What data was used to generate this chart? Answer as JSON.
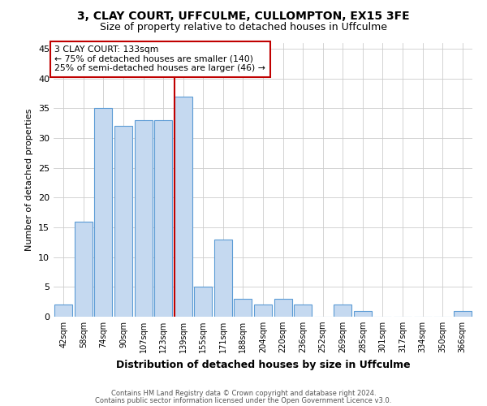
{
  "title1": "3, CLAY COURT, UFFCULME, CULLOMPTON, EX15 3FE",
  "title2": "Size of property relative to detached houses in Uffculme",
  "xlabel": "Distribution of detached houses by size in Uffculme",
  "ylabel": "Number of detached properties",
  "categories": [
    "42sqm",
    "58sqm",
    "74sqm",
    "90sqm",
    "107sqm",
    "123sqm",
    "139sqm",
    "155sqm",
    "171sqm",
    "188sqm",
    "204sqm",
    "220sqm",
    "236sqm",
    "252sqm",
    "269sqm",
    "285sqm",
    "301sqm",
    "317sqm",
    "334sqm",
    "350sqm",
    "366sqm"
  ],
  "values": [
    2,
    16,
    35,
    32,
    33,
    33,
    37,
    5,
    13,
    3,
    2,
    3,
    2,
    0,
    2,
    1,
    0,
    0,
    0,
    0,
    1
  ],
  "bar_color": "#c5d9f0",
  "bar_edge_color": "#5b9bd5",
  "vline_color": "#c00000",
  "annotation_text": "3 CLAY COURT: 133sqm\n← 75% of detached houses are smaller (140)\n25% of semi-detached houses are larger (46) →",
  "annotation_box_color": "#c00000",
  "ylim": [
    0,
    46
  ],
  "yticks": [
    0,
    5,
    10,
    15,
    20,
    25,
    30,
    35,
    40,
    45
  ],
  "footer1": "Contains HM Land Registry data © Crown copyright and database right 2024.",
  "footer2": "Contains public sector information licensed under the Open Government Licence v3.0.",
  "background_color": "#ffffff",
  "grid_color": "#cccccc"
}
